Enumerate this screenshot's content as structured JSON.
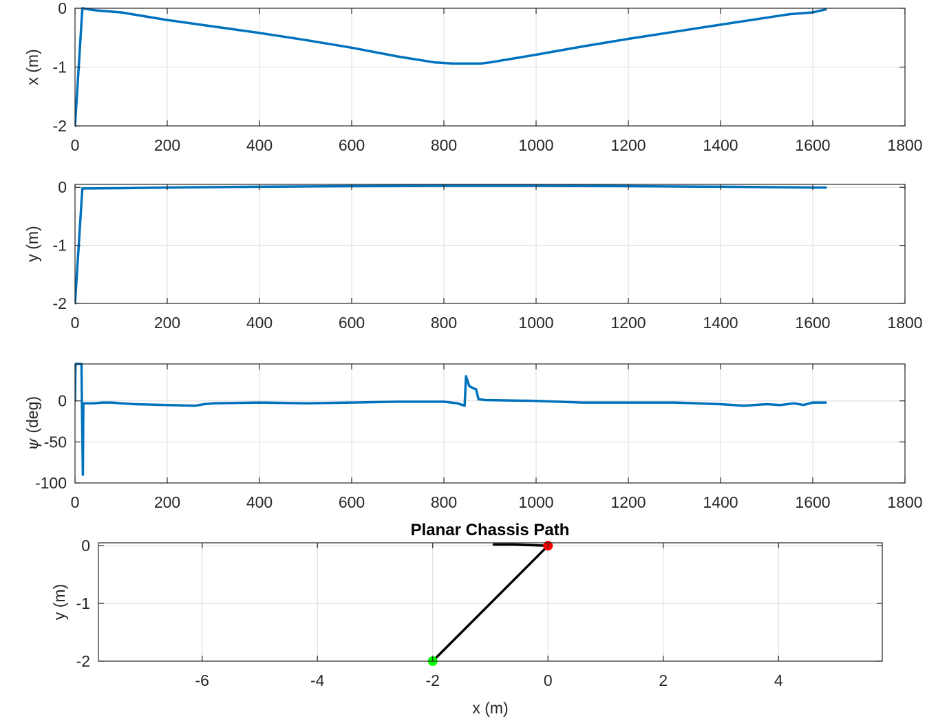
{
  "chart_data": [
    {
      "type": "line",
      "title": "",
      "xlabel": "",
      "ylabel": "x (m)",
      "xlim": [
        0,
        1800
      ],
      "ylim": [
        -2,
        0
      ],
      "xticks": [
        "0",
        "200",
        "400",
        "600",
        "800",
        "1000",
        "1200",
        "1400",
        "1600",
        "1800"
      ],
      "yticks": [
        "0",
        "-1",
        "-2"
      ],
      "grid": true,
      "series": [
        {
          "color": "#0072BD",
          "x": [
            0,
            16,
            30,
            50,
            100,
            200,
            300,
            400,
            500,
            600,
            700,
            780,
            820,
            880,
            900,
            1000,
            1100,
            1200,
            1300,
            1400,
            1500,
            1550,
            1600,
            1628
          ],
          "y": [
            -2.0,
            0.0,
            -0.02,
            -0.04,
            -0.07,
            -0.2,
            -0.31,
            -0.42,
            -0.54,
            -0.67,
            -0.82,
            -0.92,
            -0.94,
            -0.94,
            -0.92,
            -0.79,
            -0.65,
            -0.52,
            -0.4,
            -0.28,
            -0.16,
            -0.1,
            -0.07,
            -0.02
          ]
        }
      ]
    },
    {
      "type": "line",
      "title": "",
      "xlabel": "",
      "ylabel": "y (m)",
      "xlim": [
        0,
        1800
      ],
      "ylim": [
        -2,
        0.05
      ],
      "xticks": [
        "0",
        "200",
        "400",
        "600",
        "800",
        "1000",
        "1200",
        "1400",
        "1600",
        "1800"
      ],
      "yticks": [
        "0",
        "-1",
        "-2"
      ],
      "grid": true,
      "series": [
        {
          "color": "#0072BD",
          "x": [
            0,
            16,
            100,
            200,
            400,
            600,
            800,
            1000,
            1200,
            1400,
            1600,
            1628
          ],
          "y": [
            -2.0,
            -0.02,
            -0.015,
            -0.005,
            0.01,
            0.02,
            0.025,
            0.025,
            0.02,
            0.01,
            -0.005,
            -0.005
          ]
        }
      ]
    },
    {
      "type": "line",
      "title": "",
      "xlabel": "",
      "ylabel": "(deg)",
      "ylabel_symbol": "ψ",
      "xlim": [
        0,
        1800
      ],
      "ylim": [
        -100,
        45
      ],
      "xticks": [
        "0",
        "200",
        "400",
        "600",
        "800",
        "1000",
        "1200",
        "1400",
        "1600",
        "1800"
      ],
      "yticks": [
        "0",
        "-50",
        "-100"
      ],
      "grid": true,
      "series": [
        {
          "color": "#0072BD",
          "x": [
            0,
            1,
            14,
            15,
            17,
            18,
            20,
            40,
            60,
            80,
            100,
            130,
            200,
            260,
            280,
            300,
            400,
            500,
            600,
            700,
            800,
            830,
            845,
            848,
            855,
            865,
            870,
            875,
            890,
            1000,
            1100,
            1200,
            1300,
            1400,
            1450,
            1500,
            1530,
            1560,
            1580,
            1600,
            1628
          ],
          "y": [
            0,
            45,
            45,
            0,
            -90,
            -3,
            -3,
            -3,
            -2,
            -2,
            -3,
            -4,
            -5,
            -6,
            -4,
            -3,
            -2,
            -3,
            -2,
            -1,
            -1,
            -3,
            -6,
            30,
            18,
            15,
            14,
            2,
            1,
            0,
            -2,
            -2,
            -2,
            -4,
            -6,
            -4,
            -5,
            -3,
            -5,
            -2,
            -2
          ]
        }
      ]
    },
    {
      "type": "line",
      "title": "Planar Chassis Path",
      "xlabel": "x (m)",
      "ylabel": "y (m)",
      "xlim": [
        -7.8,
        5.8
      ],
      "ylim": [
        -2,
        0.05
      ],
      "xticks": [
        "-6",
        "-4",
        "-2",
        "0",
        "2",
        "4"
      ],
      "yticks": [
        "0",
        "-1",
        "-2"
      ],
      "grid": true,
      "series": [
        {
          "color": "#000000",
          "x": [
            -2.0,
            0.0,
            -0.3,
            -0.6,
            -0.94
          ],
          "y": [
            -2.0,
            0.0,
            0.01,
            0.02,
            0.02
          ]
        }
      ],
      "markers": [
        {
          "label": "start",
          "x": -2.0,
          "y": -2.0,
          "color": "#00FF00"
        },
        {
          "label": "end",
          "x": 0.0,
          "y": 0.0,
          "color": "#FF0000"
        }
      ]
    }
  ]
}
